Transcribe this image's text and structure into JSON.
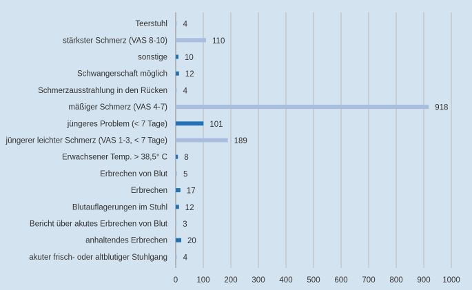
{
  "chart_data": {
    "type": "bar",
    "orientation": "horizontal",
    "categories": [
      "Teerstuhl",
      "stärkster Schmerz (VAS 8-10)",
      "sonstige",
      "Schwangerschaft möglich",
      "Schmerzausstrahlung in den Rücken",
      "mäßiger Schmerz (VAS 4-7)",
      "jüngeres Problem (< 7 Tage)",
      "jüngerer leichter Schmerz (VAS 1-3, < 7 Tage)",
      "Erwachsener Temp. > 38,5° C",
      "Erbrechen von Blut",
      "Erbrechen",
      "Blutauflagerungen im Stuhl",
      "Bericht über akutes Erbrechen von Blut",
      "anhaltendes Erbrechen",
      "akuter frisch- oder altblutiger Stuhlgang"
    ],
    "values": [
      4,
      110,
      10,
      12,
      4,
      918,
      101,
      189,
      8,
      5,
      17,
      12,
      3,
      20,
      4
    ],
    "bar_colors": [
      "#a9bedf",
      "#a9bedf",
      "#2471b3",
      "#2471b3",
      "#a9bedf",
      "#a9bedf",
      "#2471b3",
      "#a9bedf",
      "#2471b3",
      "#a9bedf",
      "#2471b3",
      "#2471b3",
      "#a9bedf",
      "#2471b3",
      "#a9bedf"
    ],
    "xlim": [
      0,
      1000
    ],
    "xticks": [
      0,
      100,
      200,
      300,
      400,
      500,
      600,
      700,
      800,
      900,
      1000
    ],
    "title": "",
    "xlabel": "",
    "ylabel": "",
    "grid": "vertical",
    "legend": "none"
  },
  "colors": {
    "background": "#d4e3f0",
    "gridline": "#b9b9b9",
    "axis": "#999999",
    "text": "#333333"
  }
}
